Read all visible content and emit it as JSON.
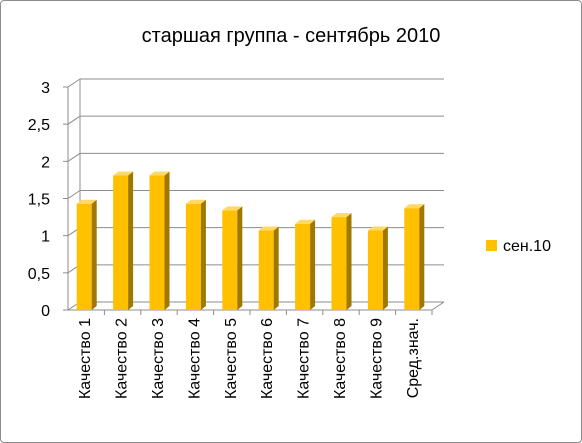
{
  "chart_data": {
    "type": "bar",
    "title": "старшая группа - сентябрь 2010",
    "categories": [
      "Качество 1",
      "Качество 2",
      "Качество 3",
      "Качество 4",
      "Качество 5",
      "Качество 6",
      "Качество 7",
      "Качество 8",
      "Качество 9",
      "Сред.знач."
    ],
    "series": [
      {
        "name": "сен.10",
        "values": [
          1.43,
          1.81,
          1.81,
          1.43,
          1.34,
          1.07,
          1.16,
          1.25,
          1.07,
          1.37
        ]
      }
    ],
    "yticks": [
      "0",
      "0,5",
      "1",
      "1,5",
      "2",
      "2,5",
      "3"
    ],
    "ylim": [
      0,
      3
    ],
    "grid": true,
    "legend": "right",
    "style": "3d-column",
    "colors": {
      "bar_front": "#FFC000",
      "bar_side": "#A07800",
      "bar_top": "#FFD966",
      "grid": "#8c8c8c"
    }
  }
}
